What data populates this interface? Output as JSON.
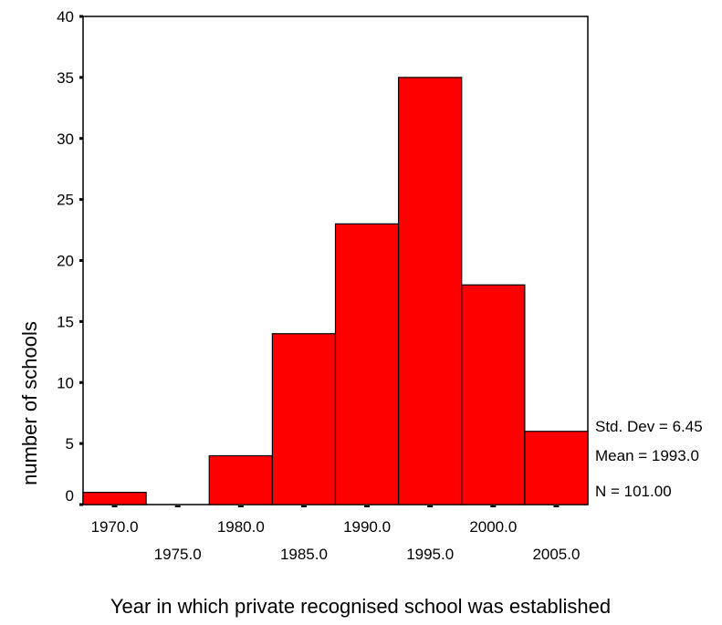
{
  "chart_data": {
    "type": "bar",
    "title": "",
    "xlabel": "Year in which private recognised school was established",
    "ylabel": "number of schools",
    "bins": [
      {
        "center": 1970.0,
        "count": 1
      },
      {
        "center": 1975.0,
        "count": 0
      },
      {
        "center": 1980.0,
        "count": 4
      },
      {
        "center": 1985.0,
        "count": 14
      },
      {
        "center": 1990.0,
        "count": 23
      },
      {
        "center": 1995.0,
        "count": 35
      },
      {
        "center": 2000.0,
        "count": 18
      },
      {
        "center": 2005.0,
        "count": 6
      }
    ],
    "bin_width": 5,
    "xlim": [
      1967.5,
      2007.5
    ],
    "ylim": [
      0,
      40
    ],
    "y_ticks": [
      0,
      5,
      10,
      15,
      20,
      25,
      30,
      35,
      40
    ],
    "x_tick_labels_upper": [
      "1970.0",
      "1980.0",
      "1990.0",
      "2000.0"
    ],
    "x_tick_labels_lower": [
      "1975.0",
      "1985.0",
      "1995.0",
      "2005.0"
    ],
    "bar_color": "#ff0000",
    "stats": {
      "std_dev": "Std. Dev = 6.45",
      "mean": "Mean = 1993.0",
      "n": "N = 101.00"
    },
    "grid": false,
    "legend": "none"
  }
}
